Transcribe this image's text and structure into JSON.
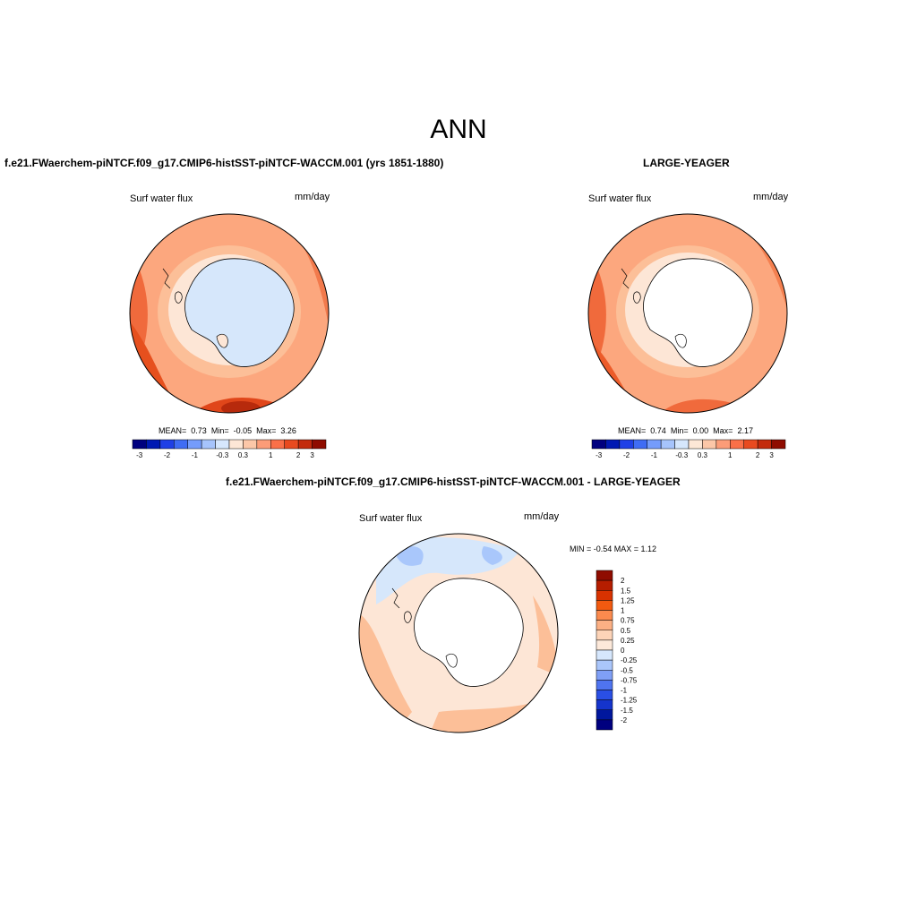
{
  "title": "ANN",
  "panels": {
    "model": {
      "title": "f.e21.FWaerchem-piNTCF.f09_g17.CMIP6-histSST-piNTCF-WACCM.001 (yrs 1851-1880)",
      "variable": "Surf water flux",
      "units": "mm/day",
      "stats": {
        "mean_label": "MEAN=",
        "mean": "0.73",
        "min_label": "Min=",
        "min": "-0.05",
        "max_label": "Max=",
        "max": "3.26"
      }
    },
    "obs": {
      "title": "LARGE-YEAGER",
      "variable": "Surf water flux",
      "units": "mm/day",
      "stats": {
        "mean_label": "MEAN=",
        "mean": "0.74",
        "min_label": "Min=",
        "min": "0.00",
        "max_label": "Max=",
        "max": "2.17"
      }
    },
    "diff": {
      "title": "f.e21.FWaerchem-piNTCF.f09_g17.CMIP6-histSST-piNTCF-WACCM.001 - LARGE-YEAGER",
      "variable": "Surf water flux",
      "units": "mm/day",
      "range_text": "MIN =  -0.54 MAX =   1.12"
    }
  },
  "colorbars": {
    "main": {
      "colors": [
        "#00007f",
        "#0019b3",
        "#1f40e6",
        "#3f6cf4",
        "#759cfb",
        "#a6c4fc",
        "#d6e7fd",
        "#fde7d6",
        "#fcc7a8",
        "#fc9c78",
        "#fa7048",
        "#e84a1f",
        "#c32b0c",
        "#8f0c00"
      ],
      "labels": [
        "-3",
        "-2",
        "-1",
        "-0.3",
        "0.3",
        "1",
        "2",
        "3"
      ]
    },
    "diff": {
      "colors": [
        "#8f0c00",
        "#b51d00",
        "#d83200",
        "#f25a10",
        "#fb8a4e",
        "#fcb084",
        "#fdd4b8",
        "#fde9da",
        "#d6e7fd",
        "#aac6fb",
        "#7f9ff6",
        "#4f74f0",
        "#2a4fe4",
        "#1534cc",
        "#00179d",
        "#00007f"
      ],
      "labels": [
        "2",
        "1.5",
        "1.25",
        "1",
        "0.75",
        "0.5",
        "0.25",
        "0",
        "-0.25",
        "-0.5",
        "-0.75",
        "-1",
        "-1.25",
        "-1.5",
        "-2"
      ]
    }
  }
}
